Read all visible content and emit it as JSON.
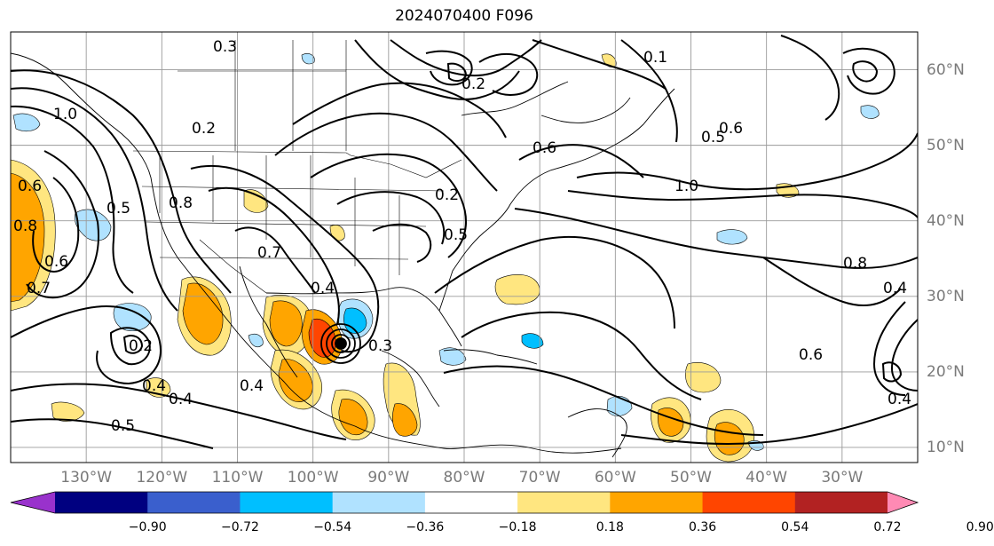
{
  "title": "2024070400 F096",
  "map": {
    "lon_labels": [
      {
        "text": "130°W",
        "lon": -130
      },
      {
        "text": "120°W",
        "lon": -120
      },
      {
        "text": "110°W",
        "lon": -110
      },
      {
        "text": "100°W",
        "lon": -100
      },
      {
        "text": "90°W",
        "lon": -90
      },
      {
        "text": "80°W",
        "lon": -80
      },
      {
        "text": "70°W",
        "lon": -70
      },
      {
        "text": "60°W",
        "lon": -60
      },
      {
        "text": "50°W",
        "lon": -50
      },
      {
        "text": "40°W",
        "lon": -40
      },
      {
        "text": "30°W",
        "lon": -30
      }
    ],
    "lat_labels": [
      {
        "text": "60°N",
        "lat": 60
      },
      {
        "text": "50°N",
        "lat": 50
      },
      {
        "text": "40°N",
        "lat": 40
      },
      {
        "text": "30°N",
        "lat": 30
      },
      {
        "text": "20°N",
        "lat": 20
      },
      {
        "text": "10°N",
        "lat": 10
      }
    ],
    "lon_range": [
      -140,
      -20
    ],
    "lat_range": [
      8,
      65
    ],
    "grid": true,
    "contour_labels": [
      "0.3",
      "0.2",
      "1.0",
      "0.5",
      "0.6",
      "0.7",
      "0.8",
      "0.2",
      "0.4",
      "0.4",
      "0.5",
      "0.7",
      "0.8",
      "0.6",
      "0.4",
      "0.3",
      "0.2",
      "0.6",
      "0.2",
      "0.4",
      "0.5",
      "1.0",
      "0.6",
      "0.8",
      "0.4",
      "0.6",
      "0.4",
      "0.5",
      "0.1"
    ],
    "cyclone_marker": {
      "lon": -96.5,
      "lat": 23.5
    }
  },
  "colorbar": {
    "colors": [
      "#9932cc",
      "#000080",
      "#3a5fcd",
      "#00bfff",
      "#b0e2ff",
      "#ffffff",
      "#ffe680",
      "#ffa500",
      "#ff4500",
      "#b22222",
      "#ff8ab4"
    ],
    "ticks": [
      "−0.90",
      "−0.72",
      "−0.54",
      "−0.36",
      "−0.18",
      "0.18",
      "0.36",
      "0.54",
      "0.72",
      "0.90"
    ]
  }
}
